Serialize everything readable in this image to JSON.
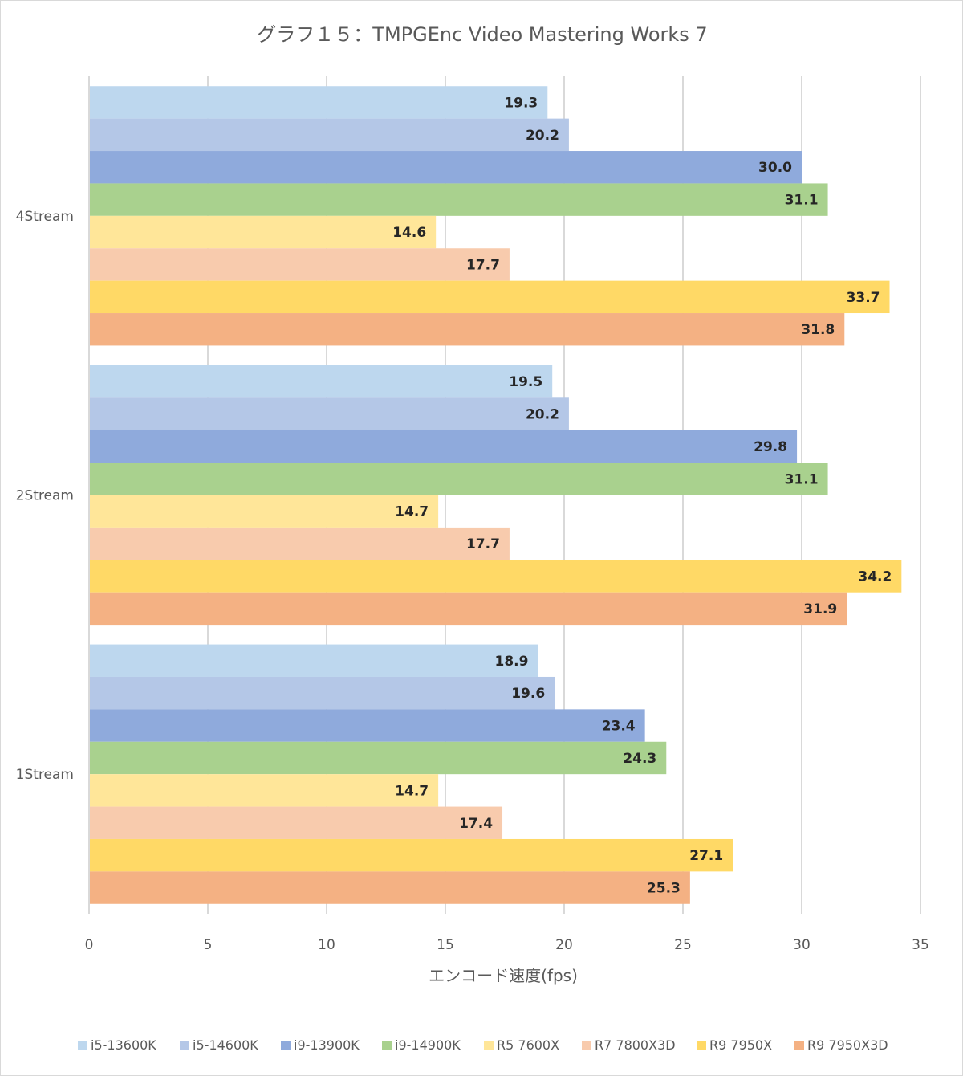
{
  "chart_data": {
    "type": "bar",
    "orientation": "horizontal",
    "title": "グラフ１５：TMPGEnc Video Mastering Works 7",
    "xlabel": "エンコード速度(fps)",
    "ylabel": "",
    "xlim": [
      0,
      35
    ],
    "xticks": [
      0,
      5,
      10,
      15,
      20,
      25,
      30,
      35
    ],
    "categories": [
      "4Stream",
      "2Stream",
      "1Stream"
    ],
    "grid": true,
    "legend_position": "bottom",
    "series": [
      {
        "name": "i5-13600K",
        "color": "#BDD7EE",
        "values": [
          19.3,
          19.5,
          18.9
        ]
      },
      {
        "name": "i5-14600K",
        "color": "#B4C7E7",
        "values": [
          20.2,
          20.2,
          19.6
        ]
      },
      {
        "name": "i9-13900K",
        "color": "#8FAADC",
        "values": [
          30.0,
          29.8,
          23.4
        ]
      },
      {
        "name": "i9-14900K",
        "color": "#A9D18E",
        "values": [
          31.1,
          31.1,
          24.3
        ]
      },
      {
        "name": "R5 7600X",
        "color": "#FFE699",
        "values": [
          14.6,
          14.7,
          14.7
        ]
      },
      {
        "name": "R7 7800X3D",
        "color": "#F8CBAD",
        "values": [
          17.7,
          17.7,
          17.4
        ]
      },
      {
        "name": "R9 7950X",
        "color": "#FFD966",
        "values": [
          33.7,
          34.2,
          27.1
        ]
      },
      {
        "name": "R9 7950X3D",
        "color": "#F4B183",
        "values": [
          31.8,
          31.9,
          25.3
        ]
      }
    ]
  }
}
